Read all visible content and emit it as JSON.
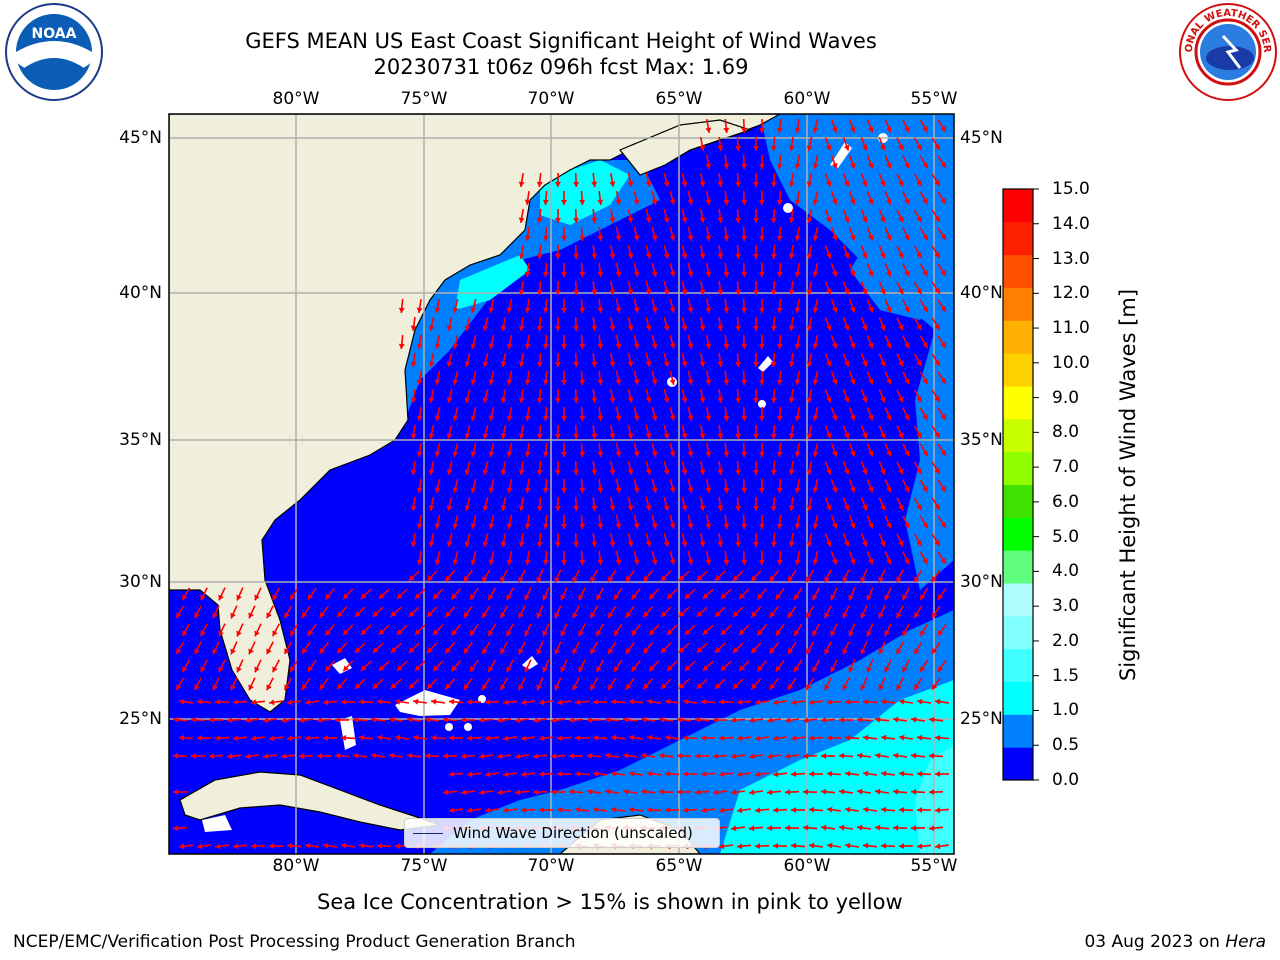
{
  "title": {
    "line1": "GEFS MEAN US East Coast Significant Height of Wind Waves",
    "line2": "20230731 t06z 096h fcst   Max: 1.69"
  },
  "logos": {
    "left": "noaa-logo",
    "right": "nws-logo",
    "right_text": "NATIONAL WEATHER SERVICE"
  },
  "map": {
    "lon_labels": [
      "80°W",
      "75°W",
      "70°W",
      "65°W",
      "60°W",
      "55°W"
    ],
    "lat_labels": [
      "45°N",
      "40°N",
      "35°N",
      "30°N",
      "25°N"
    ],
    "land_color": "#efefdb",
    "grid_color": "#b0b0b0",
    "arrow_color": "#ff0000",
    "legend_label": "Wind Wave Direction (unscaled)"
  },
  "colorbar": {
    "title": "Significant Height of Wind Waves [m]",
    "ticks": [
      "0.0",
      "0.5",
      "1.0",
      "1.5",
      "2.0",
      "3.0",
      "4.0",
      "5.0",
      "6.0",
      "7.0",
      "8.0",
      "9.0",
      "10.0",
      "11.0",
      "12.0",
      "13.0",
      "14.0",
      "15.0"
    ],
    "colors": [
      "#0000ff",
      "#0080ff",
      "#00ffff",
      "#40ffff",
      "#80ffff",
      "#b0ffff",
      "#60ff80",
      "#00ff00",
      "#40e000",
      "#90ff00",
      "#c8ff00",
      "#ffff00",
      "#ffd000",
      "#ffb000",
      "#ff8000",
      "#ff5000",
      "#ff2000",
      "#ff0000"
    ]
  },
  "footer": {
    "sea_ice": "Sea Ice Concentration > 15% is shown in pink to yellow",
    "credit": "NCEP/EMC/Verification Post Processing Product Generation Branch",
    "date": "03 Aug 2023 on ",
    "host": "Hera"
  }
}
